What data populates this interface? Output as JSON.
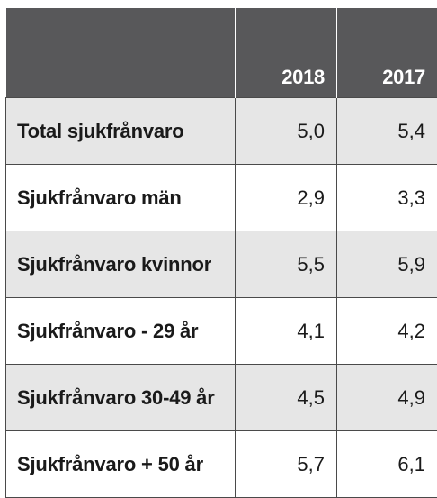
{
  "table": {
    "headers": [
      "",
      "2018",
      "2017"
    ],
    "rows": [
      {
        "label": "Total sjukfrånvaro",
        "v2018": "5,0",
        "v2017": "5,4"
      },
      {
        "label": "Sjukfrånvaro män",
        "v2018": "2,9",
        "v2017": "3,3"
      },
      {
        "label": "Sjukfrånvaro kvinnor",
        "v2018": "5,5",
        "v2017": "5,9"
      },
      {
        "label": "Sjukfrånvaro - 29 år",
        "v2018": "4,1",
        "v2017": "4,2"
      },
      {
        "label": "Sjukfrånvaro 30-49 år",
        "v2018": "4,5",
        "v2017": "4,9"
      },
      {
        "label": "Sjukfrånvaro + 50 år",
        "v2018": "5,7",
        "v2017": "6,1"
      }
    ]
  },
  "colors": {
    "header_bg": "#58585a",
    "header_text": "#ffffff",
    "row_shade": "#e6e6e6",
    "border": "#4a4a4a"
  }
}
